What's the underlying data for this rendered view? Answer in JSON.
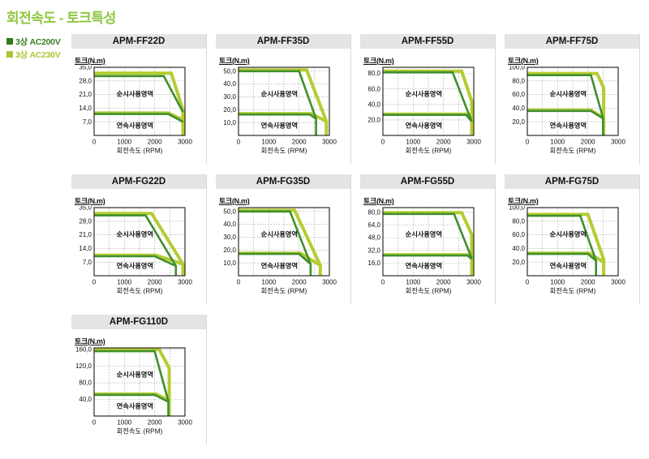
{
  "page": {
    "title": "회전속도 - 토크특성",
    "legend": [
      {
        "label": "3상 AC200V",
        "color": "#2f7d1d",
        "text_color": "#3e7d1f"
      },
      {
        "label": "3상 AC230V",
        "color": "#a7c832",
        "text_color": "#a9c838"
      }
    ]
  },
  "colors": {
    "title": "#8dc63f",
    "line_dark": "#3f8f2f",
    "line_light": "#b5cc30",
    "grid": "#9a9a9a",
    "plot_border": "#1a1a1a",
    "header_bg": "#e4e4e2"
  },
  "chart_common": {
    "type": "line",
    "ylabel": "토크(N.m)",
    "xlabel": "회전속도 (RPM)",
    "region_instant": "순시사용영역",
    "region_continuous": "연속사용영역",
    "xmax": 3000,
    "xticks": [
      0,
      1000,
      2000,
      3000
    ],
    "xtick_labels": [
      "0",
      "1000",
      "2000",
      "3000"
    ],
    "grid": "dotted, every 500 RPM vertical, every y-tick horizontal",
    "series_legend": [
      "3상 AC200V (dark green)",
      "3상 AC230V (yellow green)"
    ]
  },
  "chart_data": [
    {
      "model": "APM-FF22D",
      "ymax": 35,
      "ytick_values": [
        7,
        14,
        21,
        28,
        35
      ],
      "ytick_labels": [
        "7,0",
        "14,0",
        "21,0",
        "28,0",
        "35,0"
      ],
      "series": [
        {
          "name": "AC230V 순시",
          "color": "light",
          "points": [
            [
              0,
              32
            ],
            [
              2550,
              32
            ],
            [
              3000,
              13
            ],
            [
              3000,
              0
            ]
          ]
        },
        {
          "name": "AC230V 연속",
          "color": "light",
          "points": [
            [
              0,
              11.5
            ],
            [
              2450,
              11.5
            ],
            [
              3000,
              8
            ]
          ]
        },
        {
          "name": "AC200V 순시",
          "color": "dark",
          "points": [
            [
              0,
              30.5
            ],
            [
              2300,
              30.5
            ],
            [
              3000,
              12
            ]
          ]
        },
        {
          "name": "AC200V 연속",
          "color": "dark",
          "points": [
            [
              0,
              11
            ],
            [
              2450,
              11
            ],
            [
              3000,
              7
            ]
          ]
        }
      ]
    },
    {
      "model": "APM-FF35D",
      "ymax": 53,
      "ytick_values": [
        10,
        20,
        30,
        40,
        50
      ],
      "ytick_labels": [
        "10,0",
        "20,0",
        "30,0",
        "40,0",
        "50,0"
      ],
      "series": [
        {
          "name": "AC230V 순시",
          "color": "light",
          "points": [
            [
              0,
              51
            ],
            [
              2250,
              51
            ],
            [
              2900,
              11
            ],
            [
              2900,
              0
            ]
          ]
        },
        {
          "name": "AC230V 연속",
          "color": "light",
          "points": [
            [
              0,
              17
            ],
            [
              2400,
              17
            ],
            [
              2900,
              11
            ]
          ]
        },
        {
          "name": "AC200V 순시",
          "color": "dark",
          "points": [
            [
              0,
              50
            ],
            [
              2000,
              50
            ],
            [
              2560,
              13
            ],
            [
              2560,
              0
            ]
          ]
        },
        {
          "name": "AC200V 연속",
          "color": "dark",
          "points": [
            [
              0,
              16.3
            ],
            [
              2350,
              16.3
            ],
            [
              2560,
              13
            ]
          ]
        }
      ]
    },
    {
      "model": "APM-FF55D",
      "ymax": 88,
      "ytick_values": [
        20,
        40,
        60,
        80
      ],
      "ytick_labels": [
        "20,0",
        "40,0",
        "60,0",
        "80,0"
      ],
      "series": [
        {
          "name": "AC230V 순시",
          "color": "light",
          "points": [
            [
              0,
              83
            ],
            [
              2600,
              83
            ],
            [
              3000,
              44
            ],
            [
              3000,
              0
            ]
          ]
        },
        {
          "name": "AC230V 연속",
          "color": "light",
          "points": [
            [
              0,
              27.5
            ],
            [
              2750,
              27.5
            ],
            [
              3000,
              19
            ]
          ]
        },
        {
          "name": "AC200V 순시",
          "color": "dark",
          "points": [
            [
              0,
              81.5
            ],
            [
              2300,
              81.5
            ],
            [
              3000,
              18
            ]
          ]
        },
        {
          "name": "AC200V 연속",
          "color": "dark",
          "points": [
            [
              0,
              26.5
            ],
            [
              2750,
              26.5
            ],
            [
              3000,
              18
            ]
          ]
        }
      ]
    },
    {
      "model": "APM-FF75D",
      "ymax": 100,
      "ytick_values": [
        20,
        40,
        60,
        80,
        100
      ],
      "ytick_labels": [
        "20,0",
        "40,0",
        "60,0",
        "80,0",
        "100,0"
      ],
      "series": [
        {
          "name": "AC230V 순시",
          "color": "light",
          "points": [
            [
              0,
              91
            ],
            [
              2300,
              91
            ],
            [
              2520,
              70
            ],
            [
              2520,
              0
            ]
          ]
        },
        {
          "name": "AC230V 연속",
          "color": "light",
          "points": [
            [
              0,
              37
            ],
            [
              2100,
              37
            ],
            [
              2520,
              26
            ]
          ]
        },
        {
          "name": "AC200V 순시",
          "color": "dark",
          "points": [
            [
              0,
              88.5
            ],
            [
              2100,
              88.5
            ],
            [
              2500,
              26
            ],
            [
              2500,
              0
            ]
          ]
        },
        {
          "name": "AC200V 연속",
          "color": "dark",
          "points": [
            [
              0,
              36
            ],
            [
              2100,
              36
            ],
            [
              2500,
              25
            ]
          ]
        }
      ]
    },
    {
      "model": "APM-FG22D",
      "ymax": 35,
      "ytick_values": [
        7,
        14,
        21,
        28,
        35
      ],
      "ytick_labels": [
        "7,0",
        "14,0",
        "21,0",
        "28,0",
        "35,0"
      ],
      "series": [
        {
          "name": "AC230V 순시",
          "color": "light",
          "points": [
            [
              0,
              32
            ],
            [
              1900,
              32
            ],
            [
              3000,
              6
            ],
            [
              3000,
              0
            ]
          ]
        },
        {
          "name": "AC230V 연속",
          "color": "light",
          "points": [
            [
              0,
              10.5
            ],
            [
              2050,
              10.5
            ],
            [
              3000,
              6
            ]
          ]
        },
        {
          "name": "AC200V 순시",
          "color": "dark",
          "points": [
            [
              0,
              31
            ],
            [
              1700,
              31
            ],
            [
              2700,
              5
            ],
            [
              2700,
              0
            ]
          ]
        },
        {
          "name": "AC200V 연속",
          "color": "dark",
          "points": [
            [
              0,
              10
            ],
            [
              2000,
              10
            ],
            [
              2700,
              5
            ]
          ]
        }
      ]
    },
    {
      "model": "APM-FG35D",
      "ymax": 53,
      "ytick_values": [
        10,
        20,
        30,
        40,
        50
      ],
      "ytick_labels": [
        "10,0",
        "20,0",
        "30,0",
        "40,0",
        "50,0"
      ],
      "series": [
        {
          "name": "AC230V 순시",
          "color": "light",
          "points": [
            [
              0,
              51
            ],
            [
              1850,
              51
            ],
            [
              2700,
              8
            ],
            [
              2700,
              0
            ]
          ]
        },
        {
          "name": "AC230V 연속",
          "color": "light",
          "points": [
            [
              0,
              17.5
            ],
            [
              2050,
              17.5
            ],
            [
              2700,
              8
            ]
          ]
        },
        {
          "name": "AC200V 순시",
          "color": "dark",
          "points": [
            [
              0,
              50
            ],
            [
              1700,
              50
            ],
            [
              2380,
              9
            ],
            [
              2380,
              0
            ]
          ]
        },
        {
          "name": "AC200V 연속",
          "color": "dark",
          "points": [
            [
              0,
              17
            ],
            [
              2000,
              17
            ],
            [
              2380,
              9
            ]
          ]
        }
      ]
    },
    {
      "model": "APM-FG55D",
      "ymax": 86,
      "ytick_values": [
        16,
        32,
        48,
        64,
        80
      ],
      "ytick_labels": [
        "16,0",
        "32,0",
        "48,0",
        "64,0",
        "80,0"
      ],
      "series": [
        {
          "name": "AC230V 순시",
          "color": "light",
          "points": [
            [
              0,
              79.5
            ],
            [
              2600,
              79.5
            ],
            [
              3000,
              52
            ],
            [
              3000,
              0
            ]
          ]
        },
        {
          "name": "AC230V 연속",
          "color": "light",
          "points": [
            [
              0,
              26.5
            ],
            [
              2800,
              26.5
            ],
            [
              3000,
              21.5
            ]
          ]
        },
        {
          "name": "AC200V 순시",
          "color": "dark",
          "points": [
            [
              0,
              78
            ],
            [
              2350,
              78
            ],
            [
              3000,
              22
            ]
          ]
        },
        {
          "name": "AC200V 연속",
          "color": "dark",
          "points": [
            [
              0,
              25.5
            ],
            [
              2800,
              25.5
            ],
            [
              3000,
              21
            ]
          ]
        }
      ]
    },
    {
      "model": "APM-FG75D",
      "ymax": 100,
      "ytick_values": [
        20,
        40,
        60,
        80,
        100
      ],
      "ytick_labels": [
        "20,0",
        "40,0",
        "60,0",
        "80,0",
        "100,0"
      ],
      "series": [
        {
          "name": "AC230V 순시",
          "color": "light",
          "points": [
            [
              0,
              90
            ],
            [
              2000,
              90
            ],
            [
              2520,
              24
            ],
            [
              2520,
              0
            ]
          ]
        },
        {
          "name": "AC230V 연속",
          "color": "light",
          "points": [
            [
              0,
              33
            ],
            [
              2050,
              33
            ],
            [
              2520,
              20
            ]
          ]
        },
        {
          "name": "AC200V 순시",
          "color": "dark",
          "points": [
            [
              0,
              88
            ],
            [
              1750,
              88
            ],
            [
              2270,
              22
            ],
            [
              2270,
              0
            ]
          ]
        },
        {
          "name": "AC200V 연속",
          "color": "dark",
          "points": [
            [
              0,
              32
            ],
            [
              2000,
              32
            ],
            [
              2270,
              22
            ]
          ]
        }
      ]
    },
    {
      "model": "APM-FG110D",
      "ymax": 164,
      "ytick_values": [
        40,
        80,
        120,
        160
      ],
      "ytick_labels": [
        "40,0",
        "80,0",
        "120,0",
        "160,0"
      ],
      "series": [
        {
          "name": "AC230V 순시",
          "color": "light",
          "points": [
            [
              0,
              160
            ],
            [
              2150,
              160
            ],
            [
              2480,
              115
            ],
            [
              2480,
              0
            ]
          ]
        },
        {
          "name": "AC230V 연속",
          "color": "light",
          "points": [
            [
              0,
              53
            ],
            [
              2050,
              53
            ],
            [
              2480,
              37
            ]
          ]
        },
        {
          "name": "AC200V 순시",
          "color": "dark",
          "points": [
            [
              0,
              156
            ],
            [
              2000,
              156
            ],
            [
              2450,
              36
            ],
            [
              2450,
              0
            ]
          ]
        },
        {
          "name": "AC200V 연속",
          "color": "dark",
          "points": [
            [
              0,
              51
            ],
            [
              2000,
              51
            ],
            [
              2430,
              35
            ]
          ]
        }
      ]
    }
  ]
}
